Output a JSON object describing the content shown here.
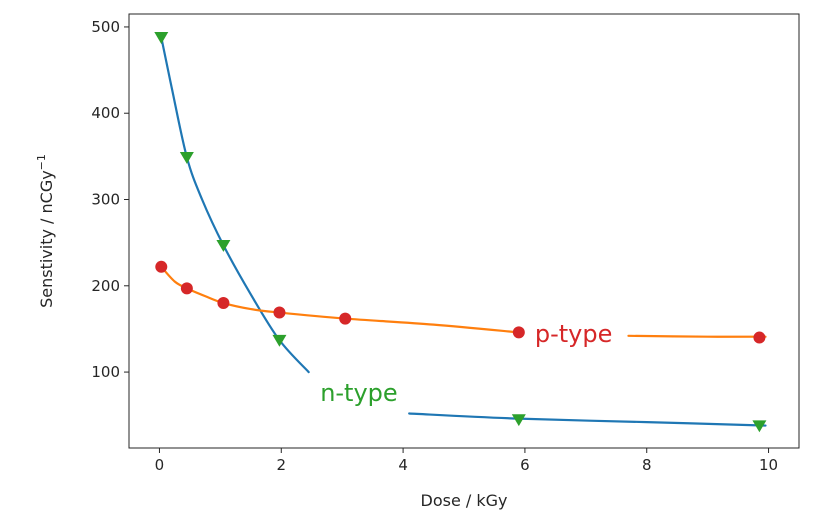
{
  "chart_data": {
    "type": "line",
    "xlabel": "Dose / kGy",
    "ylabel": "Senstivity / nCGy",
    "ylabel_superscript": "−1",
    "xlim": [
      -0.5,
      10.5
    ],
    "ylim": [
      12,
      515
    ],
    "xticks": [
      0,
      2,
      4,
      6,
      8,
      10
    ],
    "yticks": [
      100,
      200,
      300,
      400,
      500
    ],
    "grid": false,
    "series": [
      {
        "name": "n-type",
        "color": "#1f77b4",
        "marker_color": "#2ca02c",
        "marker": "triangle-down",
        "points": [
          {
            "x": 0.03,
            "y": 488
          },
          {
            "x": 0.45,
            "y": 349
          },
          {
            "x": 1.05,
            "y": 247
          },
          {
            "x": 1.97,
            "y": 137
          },
          {
            "x": 5.9,
            "y": 45
          },
          {
            "x": 9.85,
            "y": 38
          }
        ],
        "fit_curve": [
          {
            "x": 0.03,
            "y": 488
          },
          {
            "x": 0.2,
            "y": 430
          },
          {
            "x": 0.45,
            "y": 349
          },
          {
            "x": 0.7,
            "y": 300
          },
          {
            "x": 1.05,
            "y": 247
          },
          {
            "x": 1.5,
            "y": 190
          },
          {
            "x": 1.97,
            "y": 137
          },
          {
            "x": 2.45,
            "y": 100
          },
          {
            "x": 4.1,
            "y": 52
          },
          {
            "x": 5.9,
            "y": 46
          },
          {
            "x": 8,
            "y": 42
          },
          {
            "x": 9.95,
            "y": 38
          }
        ],
        "gap_x": [
          2.45,
          4.1
        ]
      },
      {
        "name": "p-type",
        "color": "#ff7f0e",
        "marker_color": "#d62728",
        "marker": "circle",
        "points": [
          {
            "x": 0.03,
            "y": 222
          },
          {
            "x": 0.45,
            "y": 197
          },
          {
            "x": 1.05,
            "y": 180
          },
          {
            "x": 1.97,
            "y": 169
          },
          {
            "x": 3.05,
            "y": 162
          },
          {
            "x": 5.9,
            "y": 146
          },
          {
            "x": 9.85,
            "y": 140
          }
        ],
        "fit_curve": [
          {
            "x": 0.03,
            "y": 222
          },
          {
            "x": 0.25,
            "y": 205
          },
          {
            "x": 0.45,
            "y": 197
          },
          {
            "x": 0.75,
            "y": 188
          },
          {
            "x": 1.05,
            "y": 180
          },
          {
            "x": 1.5,
            "y": 173
          },
          {
            "x": 1.97,
            "y": 169
          },
          {
            "x": 3.05,
            "y": 162
          },
          {
            "x": 4.5,
            "y": 155
          },
          {
            "x": 5.9,
            "y": 146
          },
          {
            "x": 7.7,
            "y": 142
          },
          {
            "x": 9,
            "y": 141
          },
          {
            "x": 9.95,
            "y": 141
          }
        ],
        "gap_x": [
          5.9,
          7.7
        ]
      }
    ]
  }
}
